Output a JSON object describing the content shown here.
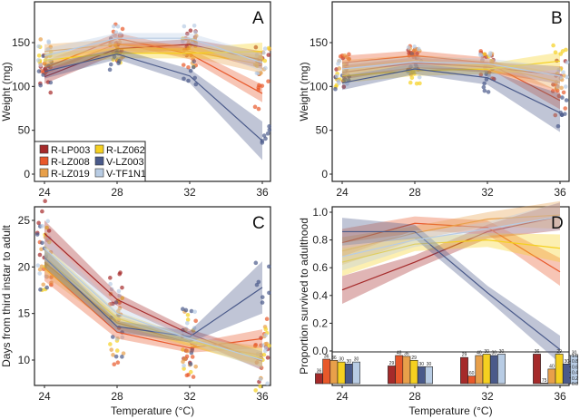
{
  "strains": [
    {
      "name": "R-LP003",
      "color": "#a52a2a"
    },
    {
      "name": "R-LZ008",
      "color": "#e8582a"
    },
    {
      "name": "R-LZ019",
      "color": "#e8a04a"
    },
    {
      "name": "R-LZ062",
      "color": "#f5d020"
    },
    {
      "name": "V-LZ003",
      "color": "#4a5a8a"
    },
    {
      "name": "V-TF1N1",
      "color": "#b8cce4"
    }
  ],
  "chart_data": [
    {
      "panel": "A",
      "type": "line",
      "xlabel": "",
      "ylabel": "Weight (mg)",
      "x": [
        24,
        28,
        32,
        36
      ],
      "xlim": [
        23.6,
        36.5
      ],
      "ylim": [
        -5,
        200
      ],
      "yticks": [
        0,
        50,
        100,
        150
      ],
      "xticks": [
        24,
        28,
        32,
        36
      ],
      "legend": "bottom-left",
      "series": [
        {
          "name": "R-LP003",
          "values": [
            111,
            143,
            148,
            130
          ]
        },
        {
          "name": "R-LZ008",
          "values": [
            121,
            155,
            137,
            92
          ]
        },
        {
          "name": "R-LZ019",
          "values": [
            140,
            148,
            140,
            125
          ]
        },
        {
          "name": "R-LZ062",
          "values": [
            130,
            138,
            138,
            140
          ]
        },
        {
          "name": "V-LZ003",
          "values": [
            117,
            137,
            112,
            38
          ]
        },
        {
          "name": "V-TF1N1",
          "values": [
            135,
            155,
            155,
            127
          ]
        }
      ]
    },
    {
      "panel": "B",
      "type": "line",
      "xlabel": "",
      "ylabel": "Weight (mg)",
      "x": [
        24,
        28,
        32,
        36
      ],
      "xlim": [
        23.6,
        36.5
      ],
      "ylim": [
        -5,
        200
      ],
      "yticks": [
        0,
        50,
        100,
        150
      ],
      "xticks": [
        24,
        28,
        32,
        36
      ],
      "series": [
        {
          "name": "R-LP003",
          "values": [
            116,
            127,
            122,
            113
          ]
        },
        {
          "name": "R-LZ008",
          "values": [
            127,
            135,
            127,
            84
          ]
        },
        {
          "name": "R-LZ019",
          "values": [
            122,
            130,
            124,
            105
          ]
        },
        {
          "name": "R-LZ062",
          "values": [
            112,
            118,
            120,
            129
          ]
        },
        {
          "name": "V-LZ003",
          "values": [
            104,
            120,
            110,
            70
          ]
        },
        {
          "name": "V-TF1N1",
          "values": [
            120,
            128,
            126,
            112
          ]
        }
      ]
    },
    {
      "panel": "C",
      "type": "line",
      "xlabel": "Temperature (°C)",
      "ylabel": "Days from third instar to adult",
      "x": [
        24,
        28,
        32,
        36
      ],
      "xlim": [
        23.6,
        36.5
      ],
      "ylim": [
        7.2,
        26.8
      ],
      "yticks": [
        10,
        15,
        20,
        25
      ],
      "xticks": [
        24,
        28,
        32,
        36
      ],
      "series": [
        {
          "name": "R-LP003",
          "values": [
            23.6,
            16.5,
            12.8,
            9.9
          ]
        },
        {
          "name": "R-LZ008",
          "values": [
            19.9,
            13.0,
            11.3,
            12.3
          ]
        },
        {
          "name": "R-LZ019",
          "values": [
            20.5,
            14.0,
            11.9,
            10.5
          ]
        },
        {
          "name": "R-LZ062",
          "values": [
            21.0,
            14.5,
            12.0,
            10.2
          ]
        },
        {
          "name": "V-LZ003",
          "values": [
            21.0,
            13.6,
            12.5,
            17.8
          ]
        },
        {
          "name": "V-TF1N1",
          "values": [
            22.0,
            15.0,
            12.3,
            10.0
          ]
        }
      ]
    },
    {
      "panel": "D",
      "type": "line",
      "xlabel": "Temperature (°C)",
      "ylabel": "Proportion survived to adulthood",
      "x": [
        24,
        28,
        32,
        36
      ],
      "xlim": [
        23.6,
        36.5
      ],
      "ylim": [
        -0.01,
        1.04
      ],
      "yticks": [
        0.0,
        0.2,
        0.4,
        0.6,
        0.8,
        1.0
      ],
      "xticks": [
        24,
        28,
        32,
        36
      ],
      "series": [
        {
          "name": "R-LP003",
          "values": [
            0.44,
            0.64,
            0.86,
            0.97
          ]
        },
        {
          "name": "R-LZ008",
          "values": [
            0.78,
            0.92,
            0.89,
            0.57
          ]
        },
        {
          "name": "R-LZ019",
          "values": [
            0.72,
            0.85,
            0.95,
            0.98
          ]
        },
        {
          "name": "R-LZ062",
          "values": [
            0.64,
            0.77,
            0.8,
            0.74
          ]
        },
        {
          "name": "V-LZ003",
          "values": [
            0.86,
            0.86,
            0.42,
            0.01
          ]
        },
        {
          "name": "V-TF1N1",
          "values": [
            0.68,
            0.8,
            0.88,
            0.97
          ]
        }
      ],
      "inset_bars": {
        "ylim": [
          0,
          1.0
        ],
        "yticks": [
          "0.0",
          "0.2",
          "0.4",
          "0.6",
          "0.8",
          "1.0"
        ],
        "groups": [
          {
            "x": 24,
            "values": [
              0.36,
              0.87,
              0.83,
              0.77,
              0.7,
              0.77
            ],
            "n": [
              "36",
              "36",
              "36",
              "30",
              "30",
              "30"
            ]
          },
          {
            "x": 28,
            "values": [
              0.63,
              1.0,
              0.97,
              0.83,
              0.6,
              0.6
            ],
            "n": [
              "29",
              "48",
              "36",
              "29",
              "30",
              "30"
            ]
          },
          {
            "x": 32,
            "values": [
              0.93,
              0.27,
              1.0,
              1.1,
              1.0,
              1.1
            ],
            "n": [
              "29",
              "60",
              "40",
              "30",
              "30",
              "30"
            ]
          },
          {
            "x": 36,
            "values": [
              1.1,
              0.02,
              0.52,
              1.1,
              0.7,
              1.0
            ],
            "n": [
              "36",
              "75",
              "40",
              "29",
              "30",
              "30"
            ]
          }
        ]
      }
    }
  ],
  "panels": {
    "A": "A",
    "B": "B",
    "C": "C",
    "D": "D"
  }
}
